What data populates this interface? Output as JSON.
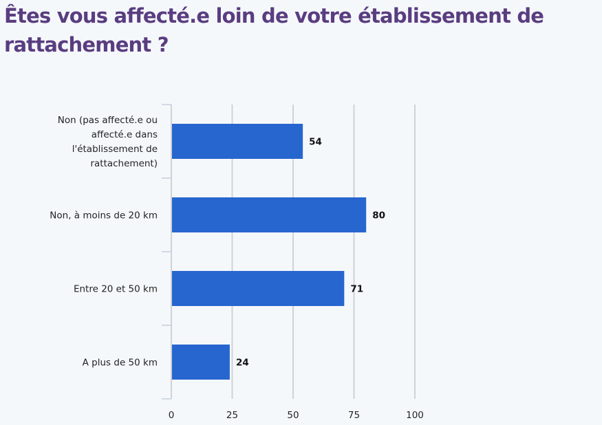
{
  "chart_data": {
    "type": "bar",
    "orientation": "horizontal",
    "title": "Êtes vous affecté.e loin de votre établissement de rattachement ?",
    "categories": [
      "Non (pas affecté.e ou affecté.e dans l'établissement de rattachement)",
      "Non, à moins de 20 km",
      "Entre 20 et 50 km",
      "A plus de 50 km"
    ],
    "category_lines": [
      [
        "Non (pas affecté.e ou",
        "affecté.e dans",
        "l'établissement de",
        "rattachement)"
      ],
      [
        "Non, à moins de 20 km"
      ],
      [
        "Entre 20 et 50 km"
      ],
      [
        "A plus de 50 km"
      ]
    ],
    "values": [
      54,
      80,
      71,
      24
    ],
    "xlabel": "",
    "ylabel": "",
    "xlim": [
      0,
      100
    ],
    "xticks": [
      0,
      25,
      50,
      75,
      100
    ],
    "grid": true,
    "legend": "none",
    "colors": {
      "bar": "#2766cf",
      "title": "#5a3d80",
      "grid": "#cfd2d6",
      "axis": "#c4cfdc"
    }
  }
}
